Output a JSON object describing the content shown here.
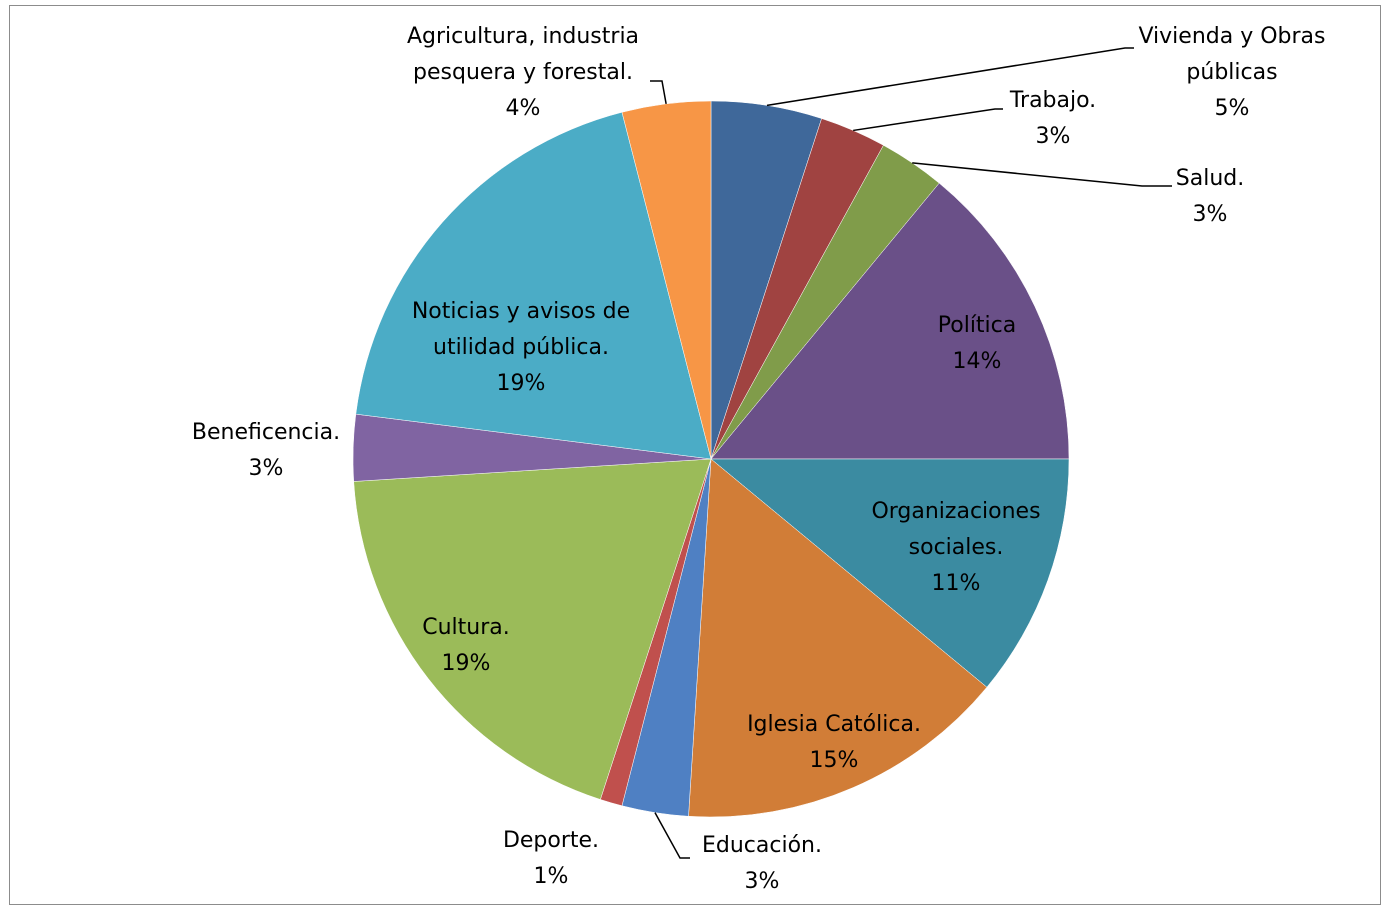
{
  "chart_data": {
    "type": "pie",
    "title": "",
    "slices": [
      {
        "label": "Vivienda y Obras públicas",
        "value": 5,
        "display": "5%",
        "color": "#3F689A"
      },
      {
        "label": "Trabajo.",
        "value": 3,
        "display": "3%",
        "color": "#A04341"
      },
      {
        "label": "Salud.",
        "value": 3,
        "display": "3%",
        "color": "#809C4A"
      },
      {
        "label": "Política",
        "value": 14,
        "display": "14%",
        "color": "#6A5088"
      },
      {
        "label": "Organizaciones sociales.",
        "value": 11,
        "display": "11%",
        "color": "#3B8BA1"
      },
      {
        "label": "Iglesia Católica.",
        "value": 15,
        "display": "15%",
        "color": "#D17D37"
      },
      {
        "label": "Educación.",
        "value": 3,
        "display": "3%",
        "color": "#4F80C3"
      },
      {
        "label": "Deporte.",
        "value": 1,
        "display": "1%",
        "color": "#C0504D"
      },
      {
        "label": "Cultura.",
        "value": 19,
        "display": "19%",
        "color": "#9BBB59"
      },
      {
        "label": "Beneficencia.",
        "value": 3,
        "display": "3%",
        "color": "#8064A2"
      },
      {
        "label": "Noticias y avisos de utilidad pública.",
        "value": 19,
        "display": "19%",
        "color": "#4BACC6"
      },
      {
        "label": "Agricultura, industria pesquera y forestal.",
        "value": 4,
        "display": "4%",
        "color": "#F79646"
      }
    ]
  }
}
